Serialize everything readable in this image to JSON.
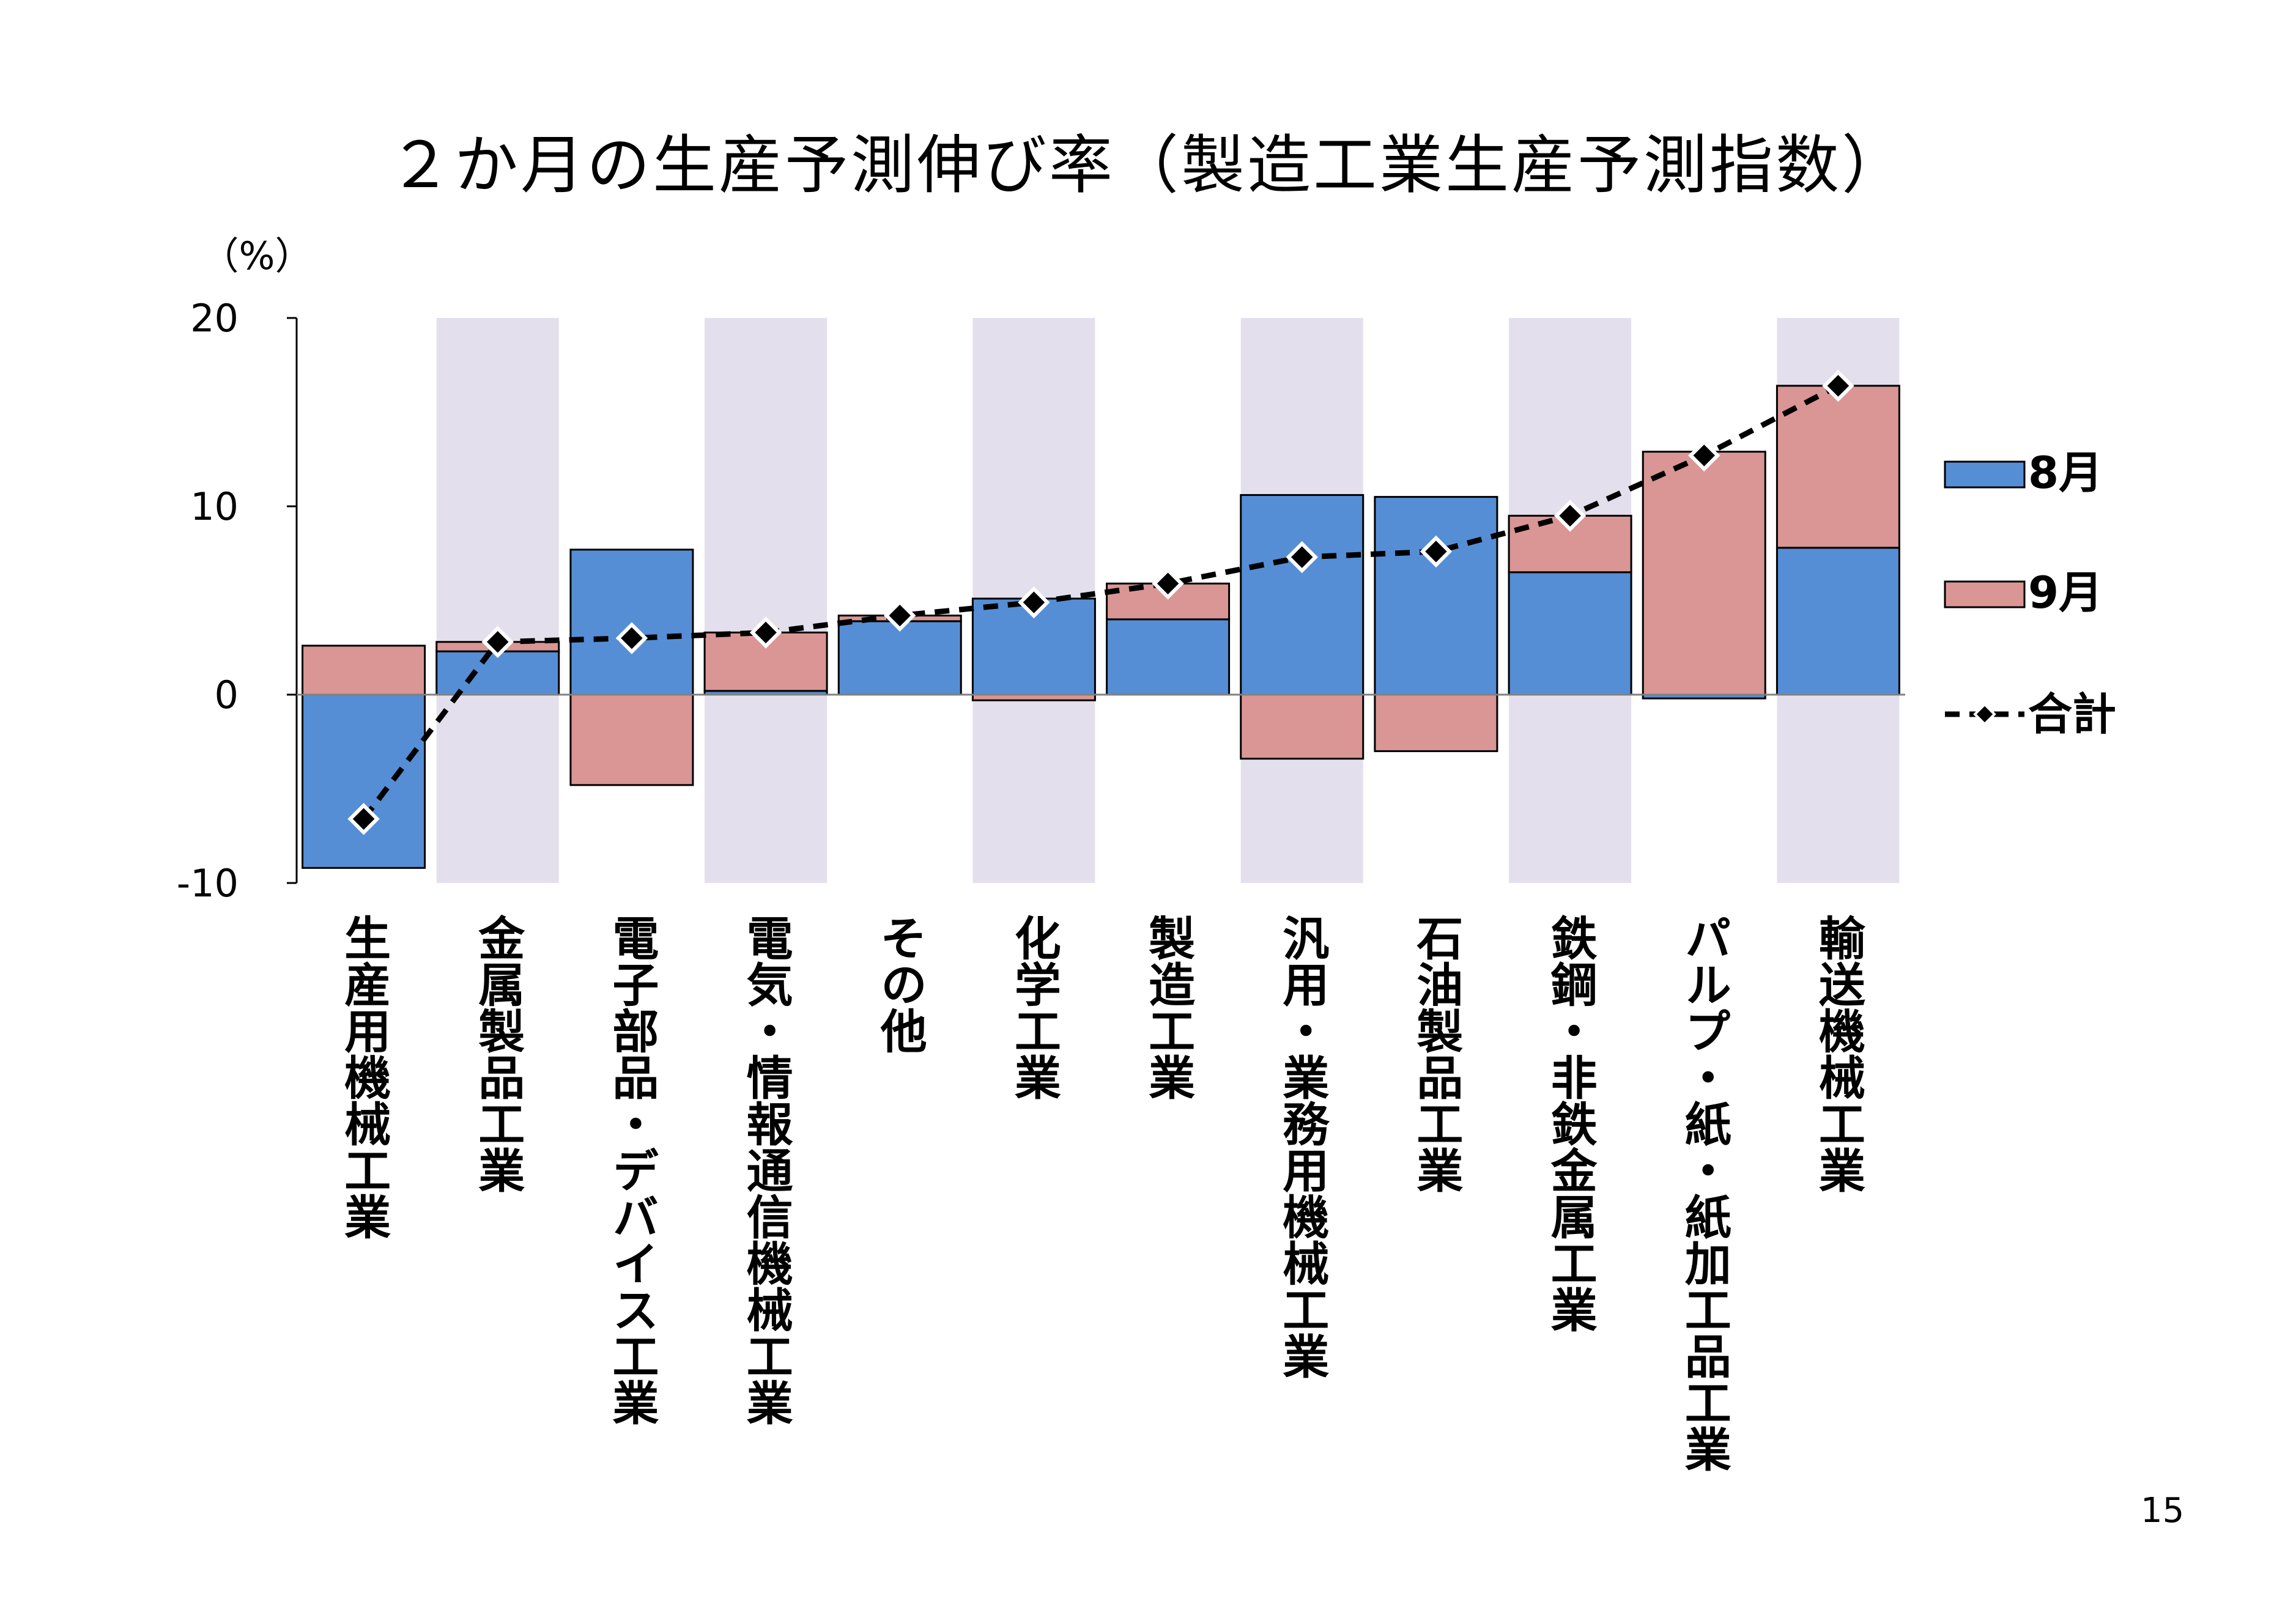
{
  "page_number": "15",
  "chart_data": {
    "type": "bar",
    "stacked": true,
    "title": "２か月の生産予測伸び率（製造工業生産予測指数）",
    "y_unit_label": "（%）",
    "ylim": [
      -10,
      20
    ],
    "y_ticks": [
      -10,
      0,
      10,
      20
    ],
    "y_tick_labels": [
      "-10",
      "0",
      "10",
      "20"
    ],
    "grid": false,
    "alternating_background_bands": true,
    "band_color": "#e4dfec",
    "legend_position": "right",
    "categories": [
      "生産用機械工業",
      "金属製品工業",
      "電子部品・デバイス工業",
      "電気・情報通信機械工業",
      "その他",
      "化学工業",
      "製造工業",
      "汎用・業務用機械工業",
      "石油製品工業",
      "鉄鋼・非鉄金属工業",
      "パルプ・紙・紙加工品工業",
      "輸送機械工業"
    ],
    "series": [
      {
        "name": "8月",
        "type": "bar",
        "color": "#558ed5",
        "values": [
          -9.2,
          2.3,
          7.7,
          0.2,
          3.9,
          5.1,
          4.0,
          10.6,
          10.5,
          6.5,
          -0.2,
          7.8
        ]
      },
      {
        "name": "9月",
        "type": "bar",
        "color": "#d99694",
        "values": [
          2.6,
          0.5,
          -4.8,
          3.1,
          0.3,
          -0.3,
          1.9,
          -3.4,
          -3.0,
          3.0,
          12.9,
          8.6
        ]
      },
      {
        "name": "合計",
        "type": "line",
        "color": "#000000",
        "line_style": "dashed",
        "marker": "diamond",
        "values": [
          -6.6,
          2.8,
          3.0,
          3.3,
          4.2,
          4.9,
          5.9,
          7.3,
          7.6,
          9.5,
          12.7,
          16.4
        ]
      }
    ]
  }
}
